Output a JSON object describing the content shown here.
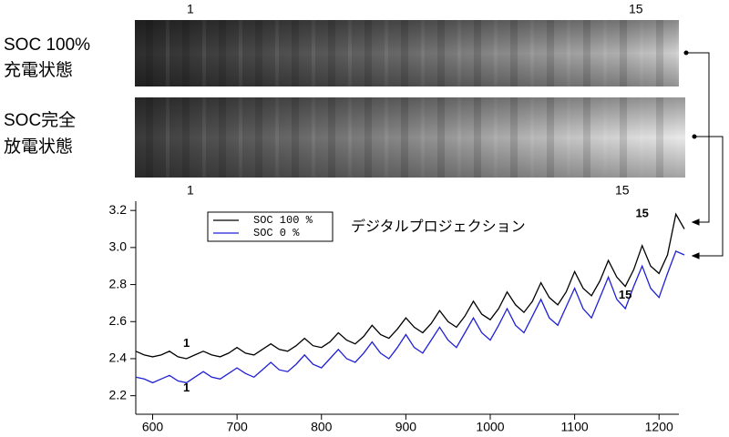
{
  "panels": [
    {
      "label": [
        "SOC 100%",
        "充電状態"
      ],
      "ticks": [
        "1",
        "15"
      ]
    },
    {
      "label": [
        "SOC完全",
        "放電状態"
      ],
      "ticks": [
        "1",
        "15"
      ]
    }
  ],
  "chart_data": {
    "type": "line",
    "title": "デジタルプロジェクション",
    "x": [
      580,
      590,
      600,
      610,
      620,
      630,
      640,
      650,
      660,
      670,
      680,
      690,
      700,
      710,
      720,
      730,
      740,
      750,
      760,
      770,
      780,
      790,
      800,
      810,
      820,
      830,
      840,
      850,
      860,
      870,
      880,
      890,
      900,
      910,
      920,
      930,
      940,
      950,
      960,
      970,
      980,
      990,
      1000,
      1010,
      1020,
      1030,
      1040,
      1050,
      1060,
      1070,
      1080,
      1090,
      1100,
      1110,
      1120,
      1130,
      1140,
      1150,
      1160,
      1170,
      1180,
      1190,
      1200,
      1210,
      1220,
      1230
    ],
    "series": [
      {
        "name": "SOC 100 %",
        "color": "#000000",
        "values": [
          2.44,
          2.42,
          2.41,
          2.42,
          2.44,
          2.41,
          2.4,
          2.42,
          2.44,
          2.42,
          2.41,
          2.43,
          2.46,
          2.43,
          2.42,
          2.45,
          2.48,
          2.45,
          2.44,
          2.47,
          2.51,
          2.47,
          2.46,
          2.49,
          2.54,
          2.5,
          2.48,
          2.52,
          2.58,
          2.53,
          2.51,
          2.56,
          2.62,
          2.57,
          2.54,
          2.59,
          2.66,
          2.6,
          2.57,
          2.63,
          2.71,
          2.64,
          2.61,
          2.67,
          2.76,
          2.69,
          2.65,
          2.71,
          2.81,
          2.73,
          2.69,
          2.76,
          2.87,
          2.78,
          2.74,
          2.82,
          2.93,
          2.84,
          2.79,
          2.88,
          3.01,
          2.9,
          2.86,
          2.96,
          3.18,
          3.1
        ]
      },
      {
        "name": "SOC 0 %",
        "color": "#1f1fd6",
        "values": [
          2.3,
          2.29,
          2.27,
          2.29,
          2.31,
          2.28,
          2.27,
          2.3,
          2.33,
          2.3,
          2.29,
          2.32,
          2.35,
          2.32,
          2.3,
          2.34,
          2.38,
          2.34,
          2.33,
          2.37,
          2.42,
          2.37,
          2.35,
          2.4,
          2.45,
          2.4,
          2.38,
          2.43,
          2.49,
          2.43,
          2.4,
          2.46,
          2.53,
          2.46,
          2.43,
          2.5,
          2.57,
          2.5,
          2.46,
          2.54,
          2.62,
          2.54,
          2.5,
          2.58,
          2.67,
          2.58,
          2.54,
          2.63,
          2.72,
          2.62,
          2.58,
          2.68,
          2.78,
          2.67,
          2.62,
          2.73,
          2.84,
          2.72,
          2.67,
          2.79,
          2.9,
          2.78,
          2.73,
          2.86,
          2.98,
          2.96
        ]
      }
    ],
    "xlim": [
      580,
      1230
    ],
    "ylim": [
      2.1,
      3.25
    ],
    "xticks": [
      600,
      700,
      800,
      900,
      1000,
      1100,
      1200
    ],
    "yticks": [
      2.2,
      2.4,
      2.6,
      2.8,
      {
        "value": 3,
        "label": "3.0"
      },
      3.2
    ],
    "legend": "upper left",
    "annotations": [
      {
        "text": "1",
        "x": 640,
        "y": 2.48
      },
      {
        "text": "1",
        "x": 640,
        "y": 2.24
      },
      {
        "text": "15",
        "x": 1180,
        "y": 3.18
      },
      {
        "text": "15",
        "x": 1160,
        "y": 2.74
      }
    ]
  }
}
